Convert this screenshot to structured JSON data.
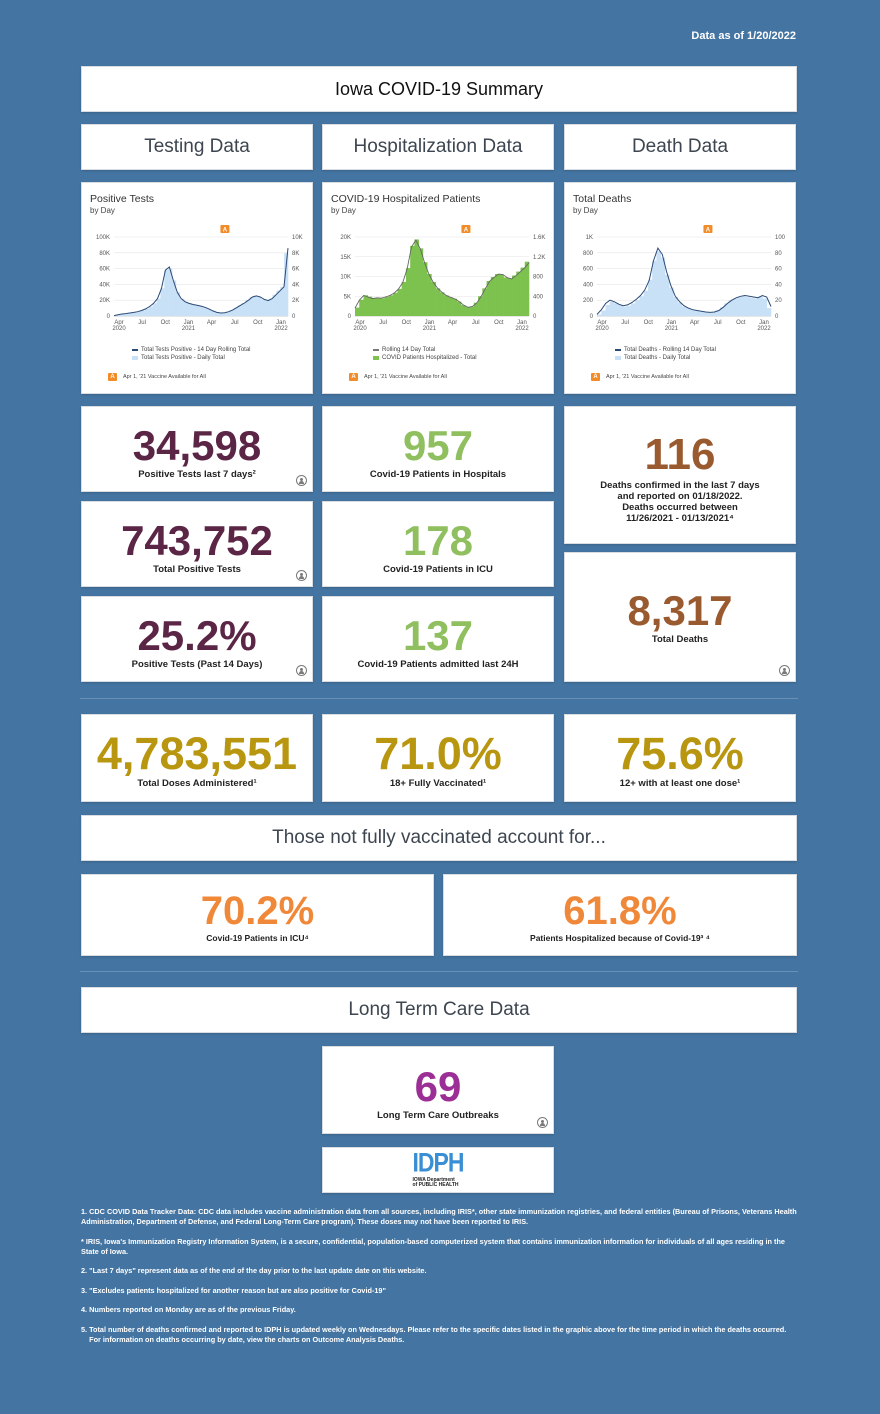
{
  "date_label": "Data as of 1/20/2022",
  "title": "Iowa COVID-19 Summary",
  "sections": {
    "testing": "Testing Data",
    "hospitalization": "Hospitalization Data",
    "death": "Death Data",
    "not_vaccinated": "Those not fully vaccinated account for...",
    "ltc": "Long Term Care Data"
  },
  "colors": {
    "testing": "#5b2545",
    "hospital": "#8fbf5f",
    "death": "#9a5a2f",
    "vaccine": "#b8960f",
    "unvax": "#f0883a",
    "ltc": "#9b2f95"
  },
  "chart_data": [
    {
      "type": "area",
      "title": "Positive Tests",
      "subtitle": "by Day",
      "x_ticks": [
        "Apr 2020",
        "Jul",
        "Oct",
        "Jan 2021",
        "Apr",
        "Jul",
        "Oct",
        "Jan 2022"
      ],
      "left_ticks": [
        "100K",
        "80K",
        "60K",
        "40K",
        "20K",
        "0"
      ],
      "right_ticks": [
        "10K",
        "8K",
        "6K",
        "4K",
        "2K",
        "0"
      ],
      "ylim_left": [
        0,
        100000
      ],
      "ylim_right": [
        0,
        10000
      ],
      "series": [
        {
          "name": "Total Tests Positive - 14 Day Rolling Total",
          "kind": "line",
          "axis": "left",
          "values": [
            500,
            1500,
            2500,
            3000,
            3800,
            4500,
            5500,
            7000,
            9000,
            12000,
            16000,
            22000,
            35000,
            58000,
            62000,
            45000,
            30000,
            22000,
            18000,
            16000,
            14500,
            13500,
            12500,
            11000,
            9000,
            6500,
            4500,
            3800,
            4200,
            5500,
            7500,
            10500,
            13500,
            16500,
            20000,
            24000,
            25500,
            24000,
            21000,
            19500,
            22000,
            27000,
            32000,
            37000,
            86000
          ]
        },
        {
          "name": "Total Tests Positive - Daily Total",
          "kind": "bar",
          "axis": "right",
          "values": [
            50,
            150,
            250,
            300,
            380,
            450,
            550,
            700,
            900,
            1200,
            1600,
            2200,
            3500,
            5800,
            6000,
            4500,
            3000,
            2200,
            1800,
            1600,
            1450,
            1350,
            1250,
            1100,
            900,
            650,
            450,
            380,
            420,
            550,
            750,
            1050,
            1350,
            1650,
            2000,
            2400,
            2550,
            2400,
            2100,
            1950,
            2200,
            2700,
            3200,
            3700,
            8000
          ]
        }
      ],
      "legend": [
        "Total Tests Positive - 14 Day Rolling Total",
        "Total Tests Positive - Daily Total"
      ],
      "annotation": "Apr 1, '21 Vaccine Available for All",
      "annotation_badge": "A"
    },
    {
      "type": "area",
      "title": "COVID-19 Hospitalized Patients",
      "subtitle": "by Day",
      "x_ticks": [
        "Apr 2020",
        "Jul",
        "Oct",
        "Jan 2021",
        "Apr",
        "Jul",
        "Oct",
        "Jan 2022"
      ],
      "left_ticks": [
        "20K",
        "15K",
        "10K",
        "5K",
        "0"
      ],
      "right_ticks": [
        "1.6K",
        "1.2K",
        "800",
        "400",
        "0"
      ],
      "ylim_left": [
        0,
        20000
      ],
      "ylim_right": [
        0,
        1600
      ],
      "series": [
        {
          "name": "Rolling 14 Day Total",
          "kind": "line",
          "axis": "left",
          "values": [
            2000,
            4000,
            5200,
            4800,
            4400,
            4600,
            4500,
            4800,
            5200,
            5800,
            6800,
            8500,
            12000,
            17500,
            19200,
            17000,
            13500,
            10500,
            8500,
            7000,
            6000,
            5200,
            4700,
            4300,
            3600,
            2700,
            2200,
            2400,
            3300,
            5000,
            7000,
            8800,
            9800,
            10600,
            10500,
            9700,
            9400,
            10200,
            11200,
            12200,
            13500
          ]
        },
        {
          "name": "COVID Patients Hospitalized - Total",
          "kind": "bar",
          "axis": "right",
          "values": [
            170,
            330,
            420,
            390,
            360,
            370,
            360,
            390,
            420,
            470,
            550,
            690,
            970,
            1420,
            1550,
            1370,
            1090,
            850,
            690,
            560,
            480,
            420,
            380,
            350,
            290,
            220,
            180,
            190,
            270,
            400,
            560,
            710,
            790,
            850,
            840,
            780,
            760,
            820,
            900,
            980,
            1100
          ]
        }
      ],
      "legend": [
        "Rolling 14 Day Total",
        "COVID Patients Hospitalized - Total"
      ],
      "annotation": "Apr 1, '21 Vaccine Available for All",
      "annotation_badge": "A"
    },
    {
      "type": "area",
      "title": "Total Deaths",
      "subtitle": "by Day",
      "x_ticks": [
        "Apr 2020",
        "Jul",
        "Oct",
        "Jan 2021",
        "Apr",
        "Jul",
        "Oct",
        "Jan 2022"
      ],
      "left_ticks": [
        "1K",
        "800",
        "600",
        "400",
        "200",
        "0"
      ],
      "right_ticks": [
        "100",
        "80",
        "60",
        "40",
        "20",
        "0"
      ],
      "ylim_left": [
        0,
        1000
      ],
      "ylim_right": [
        0,
        100
      ],
      "series": [
        {
          "name": "Total Deaths - Rolling 14 Day Total",
          "kind": "line",
          "axis": "left",
          "values": [
            20,
            80,
            160,
            200,
            180,
            150,
            130,
            140,
            170,
            210,
            260,
            330,
            450,
            700,
            860,
            780,
            560,
            380,
            250,
            180,
            130,
            100,
            80,
            70,
            60,
            50,
            45,
            50,
            70,
            110,
            160,
            200,
            230,
            250,
            260,
            250,
            240,
            230,
            260,
            240,
            120
          ]
        },
        {
          "name": "Total Deaths - Daily Total",
          "kind": "bar",
          "axis": "right",
          "values": [
            2,
            7,
            14,
            18,
            16,
            14,
            12,
            13,
            16,
            20,
            25,
            32,
            46,
            70,
            82,
            74,
            52,
            36,
            24,
            17,
            12,
            10,
            8,
            7,
            6,
            5,
            4,
            5,
            7,
            11,
            16,
            20,
            22,
            24,
            25,
            24,
            23,
            22,
            25,
            22,
            10
          ]
        }
      ],
      "legend": [
        "Total Deaths - Rolling 14 Day Total",
        "Total Deaths - Daily Total"
      ],
      "annotation": "Apr 1, '21 Vaccine Available for All",
      "annotation_badge": "A"
    }
  ],
  "metrics": {
    "pos7": {
      "value": "34,598",
      "label": "Positive Tests last 7 days²"
    },
    "totpos": {
      "value": "743,752",
      "label": "Total Positive Tests"
    },
    "pos14": {
      "value": "25.2%",
      "label": "Positive Tests (Past 14 Days)"
    },
    "hosp": {
      "value": "957",
      "label": "Covid-19 Patients in Hospitals"
    },
    "icu": {
      "value": "178",
      "label": "Covid-19 Patients in ICU"
    },
    "adm24": {
      "value": "137",
      "label": "Covid-19 Patients admitted last 24H"
    },
    "death7": {
      "value": "116",
      "label_lines": [
        "Deaths confirmed in the last 7 days",
        "and reported on 01/18/2022.",
        "Deaths occurred between",
        "11/26/2021 - 01/13/2021⁴"
      ]
    },
    "deaths": {
      "value": "8,317",
      "label": "Total Deaths"
    },
    "doses": {
      "value": "4,783,551",
      "label": "Total Doses Administered¹"
    },
    "vax18": {
      "value": "71.0%",
      "label": "18+ Fully Vaccinated¹"
    },
    "vax12": {
      "value": "75.6%",
      "label": "12+ with at least one dose¹"
    },
    "unvax_icu": {
      "value": "70.2%",
      "label": "Covid-19 Patients in ICU⁴"
    },
    "unvax_hosp": {
      "value": "61.8%",
      "label": "Patients Hospitalized because of Covid-19³ ⁴"
    },
    "ltc": {
      "value": "69",
      "label": "Long Term Care Outbreaks"
    }
  },
  "logo": {
    "text": "IDPH",
    "line1": "IOWA Department",
    "line2": "of PUBLIC HEALTH"
  },
  "notes": [
    "1. CDC COVID Data Tracker Data: CDC data includes vaccine administration data from all sources, including IRIS*, other state immunization registries, and federal entities (Bureau of Prisons, Veterans Health Administration, Department of Defense, and Federal Long-Term Care program). These doses may not have been reported to IRIS.",
    "* IRIS, Iowa's Immunization Registry Information System, is a secure, confidential, population-based computerized system that contains immunization information for individuals of all ages residing in the State of Iowa.",
    "2.  \"Last 7 days\" represent data as of the end of the day prior to the last update date on this website.",
    "3. \"Excludes patients hospitalized for another reason but are also positive for Covid-19\"",
    "4. Numbers reported on Monday are as of the previous Friday.",
    "5. Total number of deaths confirmed and reported to IDPH is updated weekly on Wednesdays.  Please refer to the specific dates listed in the graphic above for the time period in which the deaths occurred."
  ],
  "notes_last": "For information on deaths occurring by date, view the charts on Outcome Analysis Deaths."
}
